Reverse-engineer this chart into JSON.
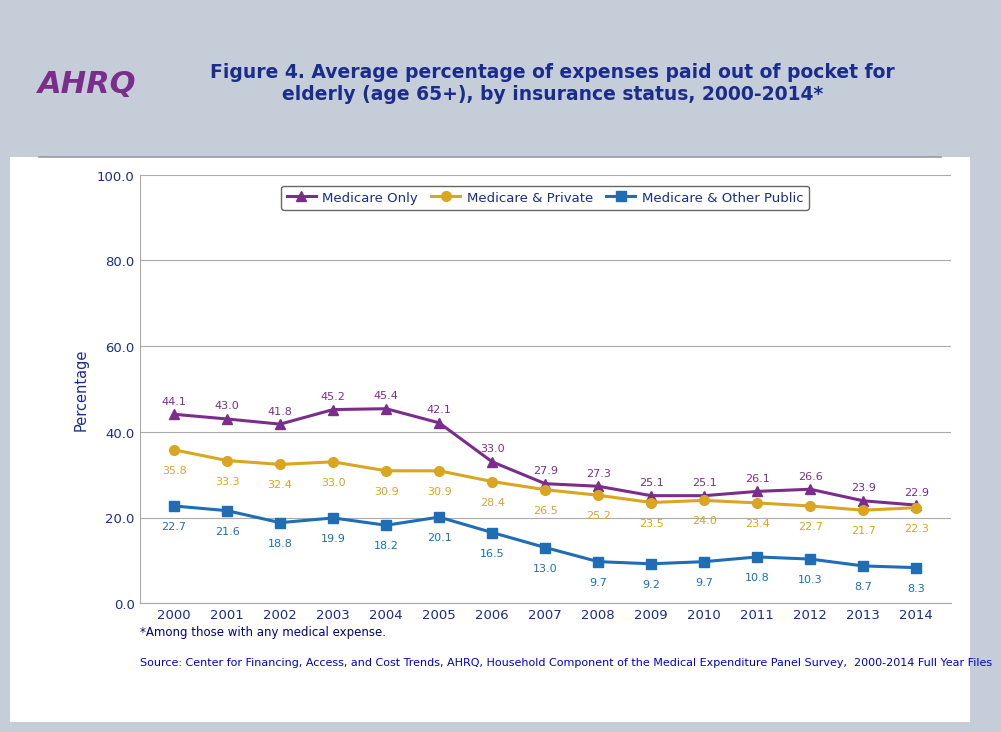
{
  "title_line1": "Figure 4. Average percentage of expenses paid out of pocket for",
  "title_line2": "elderly (age 65+), by insurance status, 2000-2014*",
  "ylabel": "Percentage",
  "years": [
    2000,
    2001,
    2002,
    2003,
    2004,
    2005,
    2006,
    2007,
    2008,
    2009,
    2010,
    2011,
    2012,
    2013,
    2014
  ],
  "medicare_only": [
    44.1,
    43.0,
    41.8,
    45.2,
    45.4,
    42.1,
    33.0,
    27.9,
    27.3,
    25.1,
    25.1,
    26.1,
    26.6,
    23.9,
    22.9
  ],
  "medicare_private": [
    35.8,
    33.3,
    32.4,
    33.0,
    30.9,
    30.9,
    28.4,
    26.5,
    25.2,
    23.5,
    24.0,
    23.4,
    22.7,
    21.7,
    22.3
  ],
  "medicare_public": [
    22.7,
    21.6,
    18.8,
    19.9,
    18.2,
    20.1,
    16.5,
    13.0,
    9.7,
    9.2,
    9.7,
    10.8,
    10.3,
    8.7,
    8.3
  ],
  "color_only": "#7B2D8B",
  "color_private": "#DAA520",
  "color_public": "#1E6DB5",
  "ylim": [
    0,
    100
  ],
  "yticks": [
    0.0,
    20.0,
    40.0,
    60.0,
    80.0,
    100.0
  ],
  "footnote1": "*Among those with any medical expense.",
  "footnote2": "Source: Center for Financing, Access, and Cost Trends, AHRQ, Household Component of the Medical Expenditure Panel Survey,  2000-2014 Full Year Files",
  "bg_header": "#C5CDD8",
  "bg_white": "#FFFFFF",
  "legend_labels": [
    "Medicare Only",
    "Medicare & Private",
    "Medicare & Other Public"
  ],
  "title_color": "#1A2C8C",
  "footnote_color1": "#000080",
  "footnote_color2": "#0000CC",
  "axis_label_color": "#1A2C8C",
  "tick_color": "#1A2C8C",
  "grid_color": "#AAAAAA",
  "separator_color": "#999999"
}
